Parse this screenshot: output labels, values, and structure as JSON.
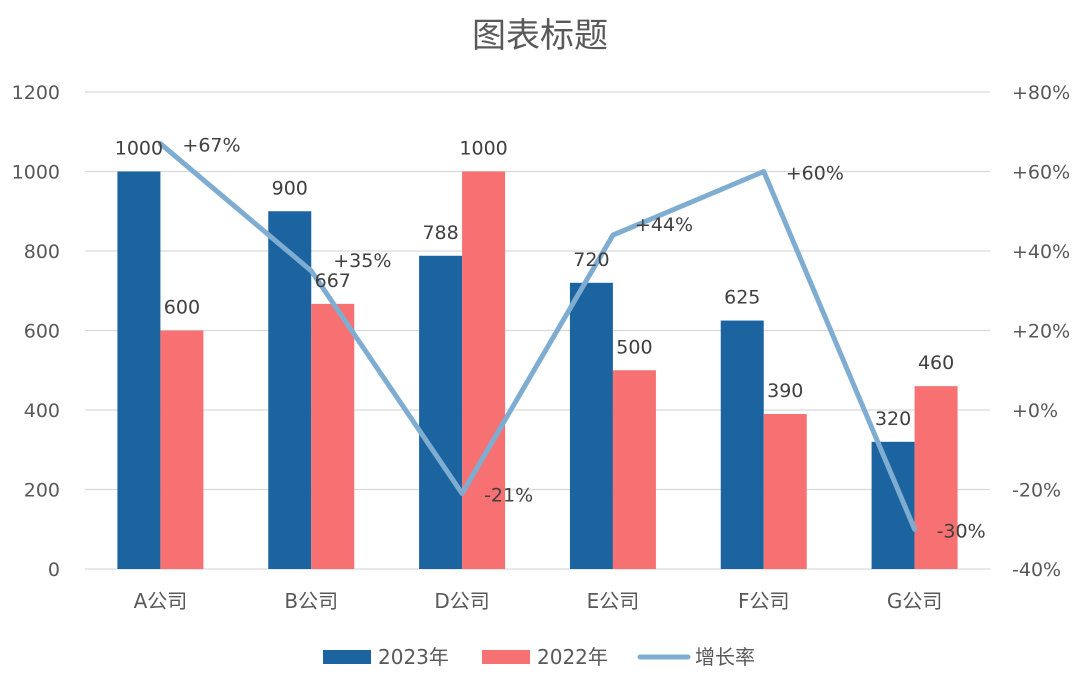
{
  "chart_data": {
    "type": "bar",
    "title": "图表标题",
    "categories": [
      "A公司",
      "B公司",
      "D公司",
      "E公司",
      "F公司",
      "G公司"
    ],
    "series": [
      {
        "name": "2023年",
        "type": "bar",
        "axis": "left",
        "color": "#1c64a0",
        "values": [
          1000,
          900,
          788,
          720,
          625,
          320
        ],
        "labels": [
          "1000",
          "900",
          "788",
          "720",
          "625",
          "320"
        ]
      },
      {
        "name": "2022年",
        "type": "bar",
        "axis": "left",
        "color": "#f77172",
        "values": [
          600,
          667,
          1000,
          500,
          390,
          460
        ],
        "labels": [
          "600",
          "667",
          "1000",
          "500",
          "390",
          "460"
        ]
      },
      {
        "name": "增长率",
        "type": "line",
        "axis": "right",
        "color": "#7fadd1",
        "values": [
          0.67,
          0.35,
          -0.21,
          0.44,
          0.6,
          -0.3
        ],
        "labels": [
          "+67%",
          "+35%",
          "-21%",
          "+44%",
          "+60%",
          "-30%"
        ]
      }
    ],
    "y_left": {
      "min": 0,
      "max": 1200,
      "ticks": [
        "0",
        "200",
        "400",
        "600",
        "800",
        "1000",
        "1200"
      ]
    },
    "y_right": {
      "min": -0.4,
      "max": 0.8,
      "ticks": [
        "-40%",
        "-20%",
        "+0%",
        "+20%",
        "+40%",
        "+60%",
        "+80%"
      ]
    },
    "grid": true,
    "legend_position": "bottom"
  }
}
